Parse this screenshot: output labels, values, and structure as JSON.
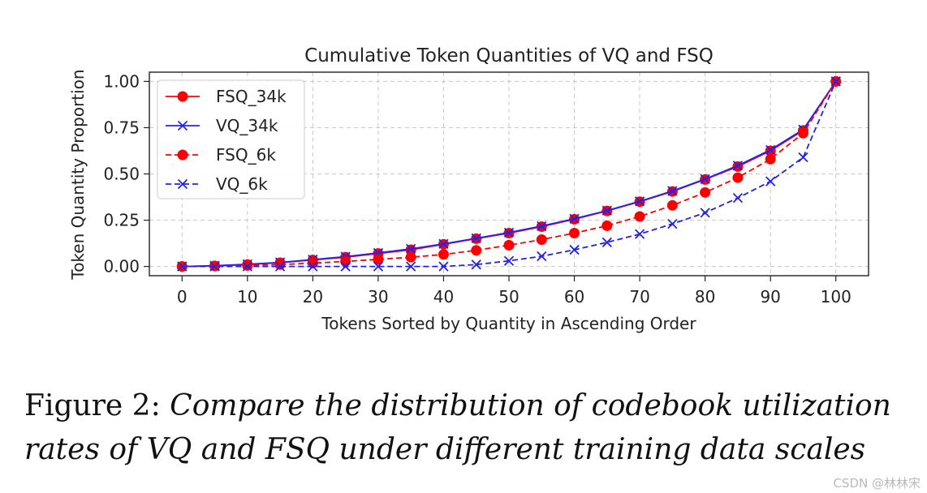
{
  "chart_data": {
    "type": "line",
    "title": "Cumulative Token Quantities of VQ and FSQ",
    "xlabel": "Tokens Sorted by Quantity in Ascending Order",
    "ylabel": "Token Quantity Proportion",
    "xlim": [
      -5,
      105
    ],
    "ylim": [
      -0.05,
      1.05
    ],
    "xticks": [
      0,
      10,
      20,
      30,
      40,
      50,
      60,
      70,
      80,
      90,
      100
    ],
    "xtick_labels": [
      "0",
      "10",
      "20",
      "30",
      "40",
      "50",
      "60",
      "70",
      "80",
      "90",
      "100"
    ],
    "yticks": [
      0,
      0.25,
      0.5,
      0.75,
      1.0
    ],
    "ytick_labels": [
      "0.00",
      "0.25",
      "0.50",
      "0.75",
      "1.00"
    ],
    "grid": true,
    "legend_position": "top-left",
    "x": [
      0,
      5,
      10,
      15,
      20,
      25,
      30,
      35,
      40,
      45,
      50,
      55,
      60,
      65,
      70,
      75,
      80,
      85,
      90,
      95,
      100
    ],
    "series": [
      {
        "name": "FSQ_34k",
        "color": "#ff0000",
        "marker": "circle",
        "linestyle": "solid",
        "values": [
          0.0,
          0.003,
          0.01,
          0.02,
          0.035,
          0.05,
          0.07,
          0.09,
          0.12,
          0.15,
          0.18,
          0.215,
          0.255,
          0.3,
          0.35,
          0.405,
          0.47,
          0.54,
          0.625,
          0.735,
          1.0
        ]
      },
      {
        "name": "VQ_34k",
        "color": "#2222ee",
        "marker": "x",
        "linestyle": "solid",
        "values": [
          0.0,
          0.004,
          0.012,
          0.022,
          0.037,
          0.053,
          0.073,
          0.095,
          0.122,
          0.152,
          0.183,
          0.218,
          0.258,
          0.302,
          0.352,
          0.408,
          0.472,
          0.545,
          0.63,
          0.74,
          1.0
        ]
      },
      {
        "name": "FSQ_6k",
        "color": "#ff0000",
        "marker": "circle",
        "linestyle": "dashed",
        "values": [
          0.0,
          0.002,
          0.005,
          0.01,
          0.018,
          0.027,
          0.038,
          0.05,
          0.065,
          0.087,
          0.115,
          0.145,
          0.18,
          0.22,
          0.27,
          0.33,
          0.4,
          0.48,
          0.58,
          0.72,
          1.0
        ]
      },
      {
        "name": "VQ_6k",
        "color": "#2222ee",
        "marker": "x",
        "linestyle": "dashed",
        "values": [
          0.0,
          0.0,
          0.0,
          0.0,
          0.0,
          0.0,
          0.0,
          0.0,
          0.0,
          0.01,
          0.03,
          0.055,
          0.09,
          0.13,
          0.175,
          0.23,
          0.29,
          0.37,
          0.46,
          0.59,
          1.0
        ]
      }
    ]
  },
  "caption": {
    "label": "Figure 2:",
    "text": "Compare the distribution of codebook utilization rates of VQ and FSQ under different training data scales"
  },
  "watermark": "CSDN @林林宋"
}
